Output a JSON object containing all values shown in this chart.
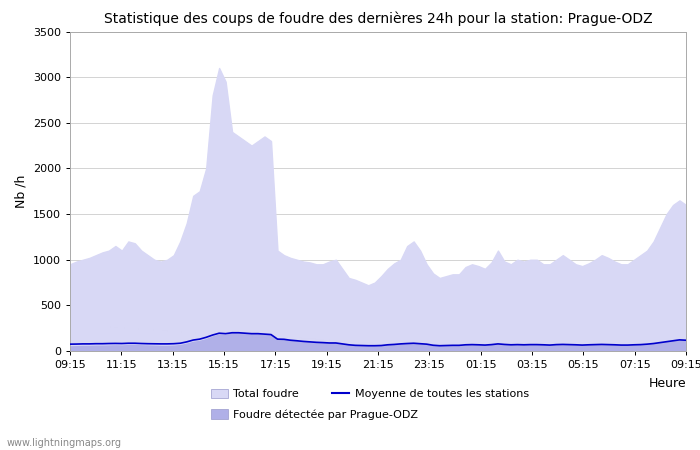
{
  "title": "Statistique des coups de foudre des dernières 24h pour la station: Prague-ODZ",
  "xlabel": "Heure",
  "ylabel": "Nb /h",
  "watermark": "www.lightningmaps.org",
  "x_labels": [
    "09:15",
    "11:15",
    "13:15",
    "15:15",
    "17:15",
    "19:15",
    "21:15",
    "23:15",
    "01:15",
    "03:15",
    "05:15",
    "07:15",
    "09:15"
  ],
  "ylim": [
    0,
    3500
  ],
  "yticks": [
    0,
    500,
    1000,
    1500,
    2000,
    2500,
    3000,
    3500
  ],
  "bg_color": "#ffffff",
  "grid_color": "#cccccc",
  "total_foudre_color": "#d8d8f5",
  "detected_color": "#b0b0e8",
  "mean_line_color": "#0000cc",
  "legend_total_label": "Total foudre",
  "legend_mean_label": "Moyenne de toutes les stations",
  "legend_detected_label": "Foudre détectée par Prague-ODZ",
  "total_foudre": [
    950,
    980,
    1000,
    1020,
    1050,
    1080,
    1100,
    1150,
    1100,
    1200,
    1180,
    1100,
    1050,
    1000,
    980,
    1000,
    1050,
    1200,
    1400,
    1700,
    1750,
    2000,
    2800,
    3100,
    2950,
    2400,
    2350,
    2300,
    2250,
    2300,
    2350,
    2300,
    1100,
    1050,
    1020,
    1000,
    980,
    970,
    950,
    950,
    980,
    1000,
    900,
    800,
    780,
    750,
    720,
    750,
    820,
    900,
    960,
    1000,
    1150,
    1200,
    1100,
    950,
    850,
    800,
    820,
    840,
    840,
    920,
    950,
    930,
    900,
    970,
    1100,
    980,
    950,
    1000,
    980,
    1000,
    1000,
    950,
    950,
    1000,
    1050,
    1000,
    950,
    930,
    960,
    1000,
    1050,
    1020,
    980,
    950,
    950,
    1000,
    1050,
    1100,
    1200,
    1350,
    1500,
    1600,
    1650,
    1600
  ],
  "detected": [
    50,
    52,
    55,
    55,
    58,
    58,
    60,
    62,
    60,
    65,
    65,
    62,
    60,
    58,
    55,
    55,
    58,
    65,
    80,
    100,
    110,
    130,
    160,
    180,
    175,
    195,
    200,
    195,
    190,
    185,
    180,
    175,
    130,
    125,
    115,
    110,
    100,
    95,
    90,
    90,
    85,
    85,
    75,
    65,
    60,
    58,
    55,
    55,
    58,
    65,
    70,
    75,
    80,
    82,
    78,
    72,
    60,
    55,
    58,
    60,
    60,
    65,
    68,
    65,
    62,
    68,
    75,
    70,
    65,
    68,
    65,
    68,
    68,
    65,
    62,
    68,
    70,
    68,
    65,
    62,
    65,
    68,
    70,
    68,
    65,
    62,
    62,
    65,
    68,
    72,
    80,
    90,
    100,
    110,
    120,
    115
  ],
  "mean_line": [
    75,
    76,
    78,
    78,
    80,
    80,
    82,
    83,
    82,
    85,
    85,
    82,
    80,
    79,
    78,
    78,
    80,
    85,
    100,
    120,
    130,
    150,
    175,
    195,
    190,
    200,
    200,
    195,
    190,
    190,
    185,
    180,
    130,
    128,
    118,
    112,
    105,
    100,
    95,
    92,
    88,
    88,
    78,
    68,
    62,
    60,
    58,
    58,
    60,
    68,
    72,
    78,
    82,
    85,
    80,
    75,
    63,
    58,
    60,
    62,
    62,
    68,
    70,
    68,
    65,
    70,
    78,
    72,
    68,
    70,
    68,
    70,
    70,
    68,
    65,
    70,
    72,
    70,
    68,
    65,
    68,
    70,
    72,
    70,
    68,
    65,
    65,
    68,
    70,
    75,
    82,
    92,
    102,
    112,
    122,
    118
  ]
}
